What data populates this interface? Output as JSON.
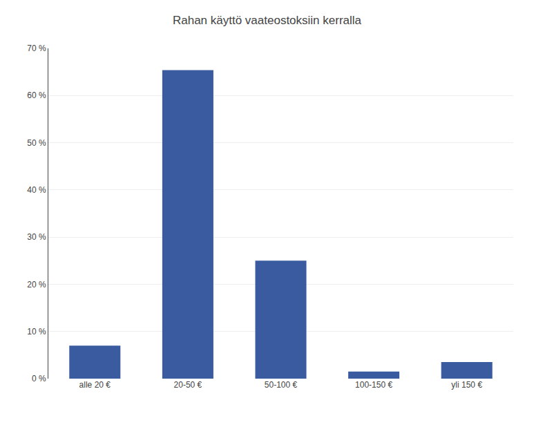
{
  "chart_data": {
    "type": "bar",
    "title": "Rahan käyttö vaateostoksiin kerralla",
    "categories": [
      "alle 20 €",
      "20-50 €",
      "50-100 €",
      "100-150 €",
      "yli 150 €"
    ],
    "values": [
      7.0,
      65.4,
      25.0,
      1.5,
      3.5
    ],
    "color": "#3A5BA0",
    "ylim": [
      0,
      70
    ],
    "yticks": [
      {
        "value": 0,
        "label": "0 %"
      },
      {
        "value": 10,
        "label": "10 %"
      },
      {
        "value": 20,
        "label": "20 %"
      },
      {
        "value": 30,
        "label": "30 %"
      },
      {
        "value": 40,
        "label": "40 %"
      },
      {
        "value": 50,
        "label": "50 %"
      },
      {
        "value": 60,
        "label": "60 %"
      },
      {
        "value": 70,
        "label": "70 %"
      }
    ],
    "grid": true
  }
}
